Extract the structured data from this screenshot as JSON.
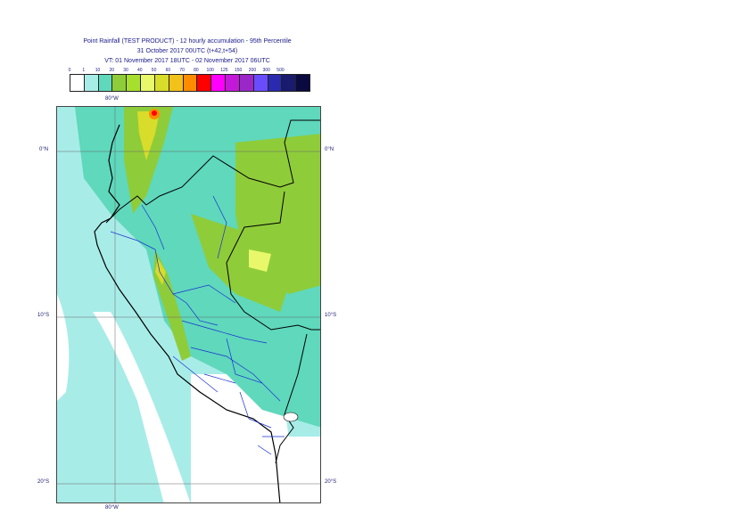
{
  "title": {
    "line1": "Point Rainfall (TEST PRODUCT) - 12 hourly accumulation - 95th Percentile",
    "line2": "31 October 2017 00UTC (t+42,t+54)",
    "line3": "VT: 01 November 2017 18UTC - 02 November 2017 06UTC"
  },
  "legend": {
    "ticks": [
      "0",
      "1",
      "10",
      "20",
      "30",
      "40",
      "50",
      "60",
      "70",
      "80",
      "100",
      "125",
      "150",
      "200",
      "300",
      "500"
    ],
    "colors": [
      "#ffffff",
      "#a8ece8",
      "#5fd8bc",
      "#8fcc3a",
      "#a7df2e",
      "#e8f86a",
      "#d8dc2a",
      "#f2c21a",
      "#ff8c00",
      "#ff0000",
      "#ff00ff",
      "#c21ad8",
      "#9a28c8",
      "#6a4cff",
      "#2a2ab0",
      "#1a1a6e",
      "#0a0a40"
    ]
  },
  "axes": {
    "lon_top": "80°W",
    "lon_bottom": "80°W",
    "lat_left": [
      "0°N",
      "10°S",
      "20°S"
    ],
    "lat_right": [
      "0°N",
      "10°S",
      "20°S"
    ]
  }
}
